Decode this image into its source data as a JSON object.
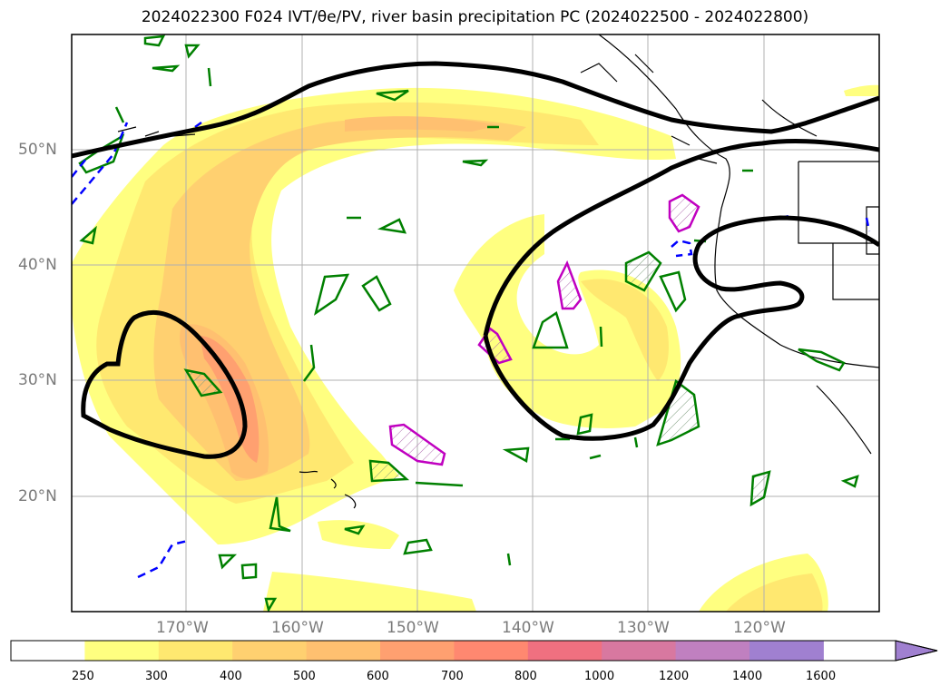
{
  "title": "2024022300 F024 IVT/θe/PV, river basin precipitation PC (2024022500 - 2024022800)",
  "map": {
    "projection": "plate-carree",
    "lon_range": [
      "180°",
      "110°W"
    ],
    "lat_range": [
      "10°N",
      "60°N"
    ],
    "gridlines": true,
    "lat_labels": [
      "50°N",
      "40°N",
      "30°N",
      "20°N"
    ],
    "lon_labels": [
      "170°W",
      "160°W",
      "150°W",
      "140°W",
      "130°W",
      "120°W"
    ],
    "layers": [
      {
        "name": "IVT shading (kg m-1 s-1)",
        "style": "filled contours yellow to purple"
      },
      {
        "name": "theta-e / PV contour",
        "style": "thick black line"
      },
      {
        "name": "PV contours",
        "style": "green closed contours"
      },
      {
        "name": "magenta contours",
        "style": "magenta closed contours with hatching"
      },
      {
        "name": "dashed blue contours",
        "style": "blue dashed lines"
      },
      {
        "name": "coastlines and borders",
        "style": "thin black"
      }
    ]
  },
  "colorbar": {
    "levels": [
      "250",
      "300",
      "400",
      "500",
      "600",
      "700",
      "800",
      "1000",
      "1200",
      "1400",
      "1600"
    ],
    "colors": [
      "#ffffff",
      "#ffff80",
      "#ffe870",
      "#ffd070",
      "#ffc070",
      "#ffa070",
      "#ff8870",
      "#f07080",
      "#d878a0",
      "#c080c0",
      "#a080d0"
    ],
    "extend": "max"
  }
}
